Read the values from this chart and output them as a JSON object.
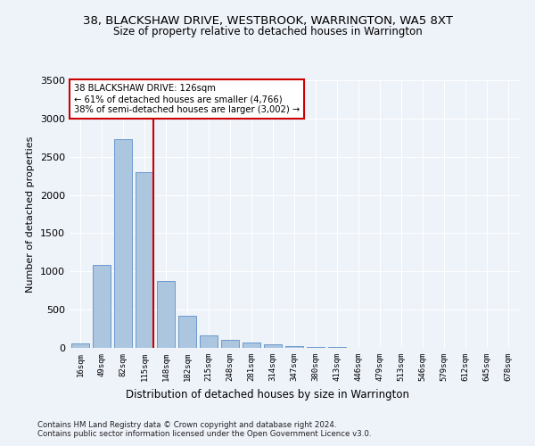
{
  "title1": "38, BLACKSHAW DRIVE, WESTBROOK, WARRINGTON, WA5 8XT",
  "title2": "Size of property relative to detached houses in Warrington",
  "xlabel": "Distribution of detached houses by size in Warrington",
  "ylabel": "Number of detached properties",
  "footer1": "Contains HM Land Registry data © Crown copyright and database right 2024.",
  "footer2": "Contains public sector information licensed under the Open Government Licence v3.0.",
  "categories": [
    "16sqm",
    "49sqm",
    "82sqm",
    "115sqm",
    "148sqm",
    "182sqm",
    "215sqm",
    "248sqm",
    "281sqm",
    "314sqm",
    "347sqm",
    "380sqm",
    "413sqm",
    "446sqm",
    "479sqm",
    "513sqm",
    "546sqm",
    "579sqm",
    "612sqm",
    "645sqm",
    "678sqm"
  ],
  "values": [
    55,
    1090,
    2730,
    2300,
    880,
    420,
    165,
    105,
    65,
    45,
    25,
    15,
    8,
    0,
    0,
    0,
    0,
    0,
    0,
    0,
    0
  ],
  "bar_color": "#adc6e0",
  "bar_edge_color": "#5b8fc9",
  "highlight_index": 3,
  "highlight_color": "#cc0000",
  "annotation_text": "38 BLACKSHAW DRIVE: 126sqm\n← 61% of detached houses are smaller (4,766)\n38% of semi-detached houses are larger (3,002) →",
  "annotation_box_color": "#ffffff",
  "annotation_border_color": "#cc0000",
  "ylim": [
    0,
    3500
  ],
  "yticks": [
    0,
    500,
    1000,
    1500,
    2000,
    2500,
    3000,
    3500
  ],
  "background_color": "#eef2f9",
  "grid_color": "#ffffff",
  "bar_width": 0.85
}
